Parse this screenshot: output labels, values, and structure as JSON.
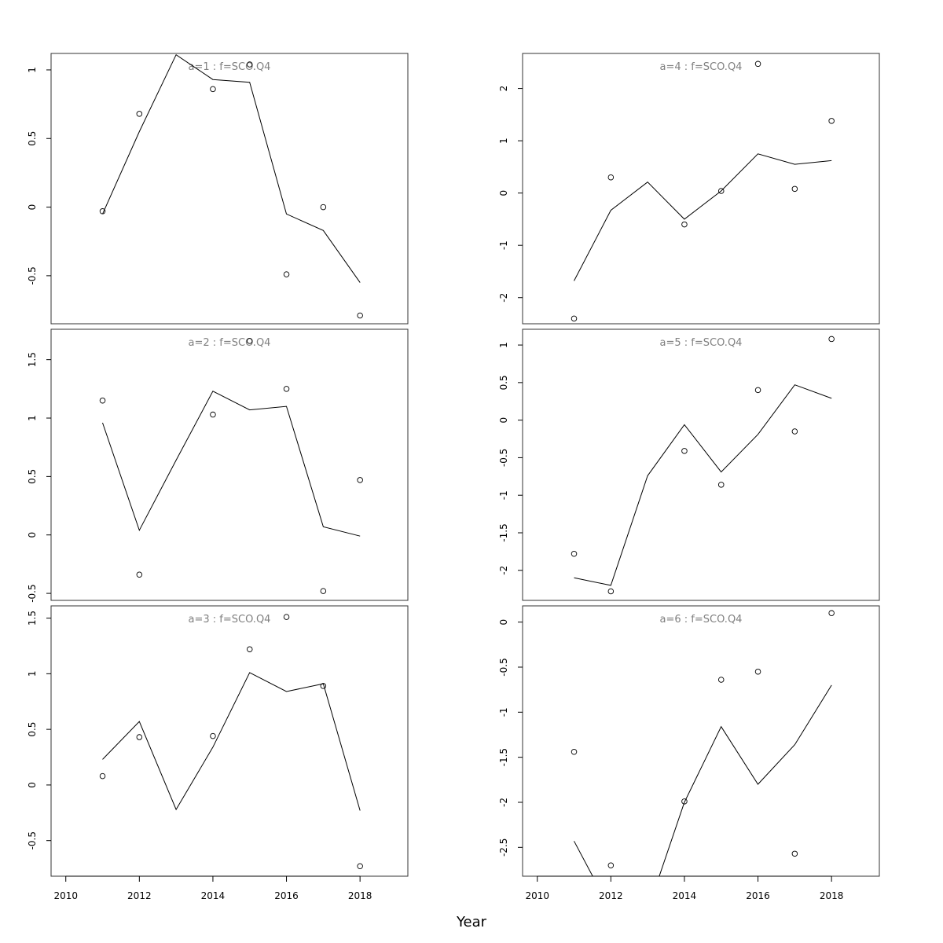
{
  "x_axis_title": "Year",
  "chart_data": [
    {
      "type": "line",
      "panel_title": "a=1 : f=SCO.Q4",
      "x": [
        2011,
        2012,
        2013,
        2014,
        2015,
        2016,
        2017,
        2018
      ],
      "series": [
        {
          "kind": "fitted",
          "values": [
            -0.05,
            0.55,
            1.11,
            0.93,
            0.91,
            -0.05,
            -0.17,
            -0.55
          ]
        },
        {
          "kind": "observed",
          "values": [
            -0.03,
            0.68,
            null,
            0.86,
            1.04,
            -0.49,
            0.0,
            -0.79
          ]
        }
      ],
      "xlim": [
        2009.6,
        2019.3
      ],
      "ylim": [
        -0.85,
        1.12
      ],
      "yticks": [
        -0.5,
        0.0,
        0.5,
        1.0
      ],
      "xticks": [],
      "xlabel": "",
      "ylabel": ""
    },
    {
      "type": "line",
      "panel_title": "a=4 : f=SCO.Q4",
      "x": [
        2011,
        2012,
        2013,
        2014,
        2015,
        2016,
        2017,
        2018
      ],
      "series": [
        {
          "kind": "fitted",
          "values": [
            -1.68,
            -0.33,
            0.21,
            -0.5,
            0.04,
            0.75,
            0.55,
            0.62
          ]
        },
        {
          "kind": "observed",
          "values": [
            -2.4,
            0.3,
            null,
            -0.6,
            0.04,
            2.47,
            0.08,
            1.38
          ]
        }
      ],
      "xlim": [
        2009.6,
        2019.3
      ],
      "ylim": [
        -2.5,
        2.67
      ],
      "yticks": [
        -2,
        -1,
        0,
        1,
        2
      ],
      "xticks": [],
      "xlabel": "",
      "ylabel": ""
    },
    {
      "type": "line",
      "panel_title": "a=2 : f=SCO.Q4",
      "x": [
        2011,
        2012,
        2013,
        2014,
        2015,
        2016,
        2017,
        2018
      ],
      "series": [
        {
          "kind": "fitted",
          "values": [
            0.96,
            0.04,
            0.64,
            1.23,
            1.07,
            1.1,
            0.07,
            -0.01
          ]
        },
        {
          "kind": "observed",
          "values": [
            1.15,
            -0.34,
            null,
            1.03,
            1.66,
            1.25,
            -0.48,
            0.47
          ]
        }
      ],
      "xlim": [
        2009.6,
        2019.3
      ],
      "ylim": [
        -0.56,
        1.76
      ],
      "yticks": [
        -0.5,
        0.0,
        0.5,
        1.0,
        1.5
      ],
      "xticks": [],
      "xlabel": "",
      "ylabel": ""
    },
    {
      "type": "line",
      "panel_title": "a=5 : f=SCO.Q4",
      "x": [
        2011,
        2012,
        2013,
        2014,
        2015,
        2016,
        2017,
        2018
      ],
      "series": [
        {
          "kind": "fitted",
          "values": [
            -2.1,
            -2.2,
            -0.74,
            -0.06,
            -0.69,
            -0.19,
            0.47,
            0.29
          ]
        },
        {
          "kind": "observed",
          "values": [
            -1.78,
            -2.28,
            null,
            -0.41,
            -0.86,
            0.4,
            -0.15,
            1.08
          ]
        }
      ],
      "xlim": [
        2009.6,
        2019.3
      ],
      "ylim": [
        -2.4,
        1.21
      ],
      "yticks": [
        -2.0,
        -1.5,
        -1.0,
        -0.5,
        0.0,
        0.5,
        1.0
      ],
      "xticks": [],
      "xlabel": "",
      "ylabel": ""
    },
    {
      "type": "line",
      "panel_title": "a=3 : f=SCO.Q4",
      "x": [
        2011,
        2012,
        2013,
        2014,
        2015,
        2016,
        2017,
        2018
      ],
      "series": [
        {
          "kind": "fitted",
          "values": [
            0.23,
            0.57,
            -0.22,
            0.34,
            1.01,
            0.84,
            0.91,
            -0.23
          ]
        },
        {
          "kind": "observed",
          "values": [
            0.08,
            0.43,
            null,
            0.44,
            1.22,
            1.51,
            0.89,
            -0.73
          ]
        }
      ],
      "xlim": [
        2009.6,
        2019.3
      ],
      "ylim": [
        -0.82,
        1.61
      ],
      "yticks": [
        -0.5,
        0.0,
        0.5,
        1.0,
        1.5
      ],
      "xticks": [
        2010,
        2012,
        2014,
        2016,
        2018
      ],
      "xlabel": "",
      "ylabel": ""
    },
    {
      "type": "line",
      "panel_title": "a=6 : f=SCO.Q4",
      "x": [
        2011,
        2012,
        2013,
        2014,
        2015,
        2016,
        2017,
        2018
      ],
      "series": [
        {
          "kind": "fitted",
          "values": [
            -2.43,
            -3.2,
            -3.2,
            -2.0,
            -1.16,
            -1.8,
            -1.36,
            -0.7
          ]
        },
        {
          "kind": "observed",
          "values": [
            -1.44,
            -2.7,
            null,
            -1.99,
            -0.64,
            -0.55,
            -2.57,
            0.1
          ]
        }
      ],
      "xlim": [
        2009.6,
        2019.3
      ],
      "ylim": [
        -2.82,
        0.18
      ],
      "yticks": [
        -2.5,
        -2.0,
        -1.5,
        -1.0,
        -0.5,
        0.0
      ],
      "xticks": [
        2010,
        2012,
        2014,
        2016,
        2018
      ],
      "xlabel": "",
      "ylabel": ""
    }
  ]
}
